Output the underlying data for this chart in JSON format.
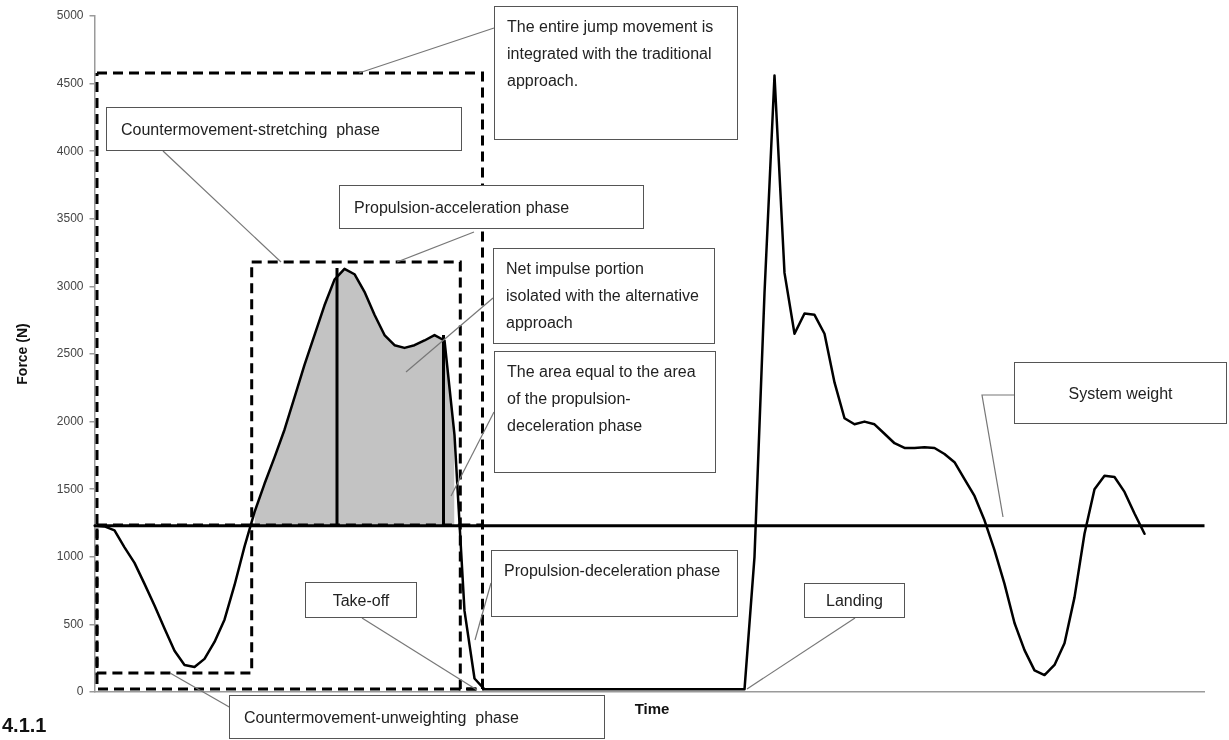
{
  "chart_data": {
    "type": "line",
    "xlabel": "Time",
    "ylabel": "Force (N)",
    "categories": [
      null,
      null,
      null,
      null,
      null,
      null,
      null,
      null,
      null,
      null,
      null,
      null,
      null,
      null,
      null,
      null,
      null,
      null,
      null,
      null,
      null,
      null,
      null,
      null,
      null,
      null,
      null,
      null,
      null,
      null,
      null,
      null,
      null,
      null,
      null,
      null,
      null,
      null,
      null,
      null,
      null,
      null,
      null,
      null,
      null,
      null,
      null,
      null,
      null,
      null,
      null,
      null,
      null,
      null,
      null,
      null,
      null,
      null,
      null,
      null,
      null,
      null,
      null,
      null,
      null,
      null,
      null,
      null,
      null,
      null,
      null,
      null,
      null,
      null,
      null,
      null,
      null,
      null,
      null,
      null,
      null,
      null,
      null,
      null,
      null,
      null,
      null,
      null,
      null,
      null,
      null,
      null,
      null,
      null,
      null,
      null,
      null,
      null,
      null,
      null,
      null,
      null,
      null,
      null,
      null,
      null,
      null,
      null,
      null,
      null,
      null,
      null
    ],
    "series": [
      {
        "color": "#000000",
        "values": [
          1230,
          1225,
          1195,
          1070,
          955,
          800,
          640,
          470,
          305,
          200,
          185,
          245,
          370,
          535,
          790,
          1075,
          1330,
          1540,
          1735,
          1940,
          2180,
          2420,
          2640,
          2860,
          3050,
          3130,
          3090,
          2960,
          2790,
          2640,
          2565,
          2545,
          2565,
          2600,
          2640,
          2600,
          1900,
          600,
          100,
          20,
          20,
          20,
          20,
          20,
          20,
          20,
          20,
          20,
          20,
          20,
          20,
          20,
          20,
          20,
          20,
          20,
          20,
          20,
          20,
          20,
          20,
          20,
          20,
          20,
          20,
          20,
          1000,
          2950,
          4560,
          3100,
          2650,
          2800,
          2790,
          2650,
          2290,
          2025,
          1980,
          2000,
          1980,
          1910,
          1840,
          1805,
          1805,
          1810,
          1805,
          1760,
          1700,
          1575,
          1450,
          1270,
          1050,
          800,
          510,
          310,
          160,
          125,
          200,
          360,
          700,
          1170,
          1500,
          1600,
          1590,
          1480,
          1320,
          1170,
          null,
          null,
          null,
          null,
          null,
          null
        ],
        "lower": [
          null,
          null,
          null,
          null,
          null,
          null,
          null,
          null,
          null,
          null,
          null,
          null,
          null,
          null,
          null,
          null,
          1230,
          1230,
          1230,
          1230,
          1230,
          1230,
          1230,
          1230,
          1230,
          1230,
          1230,
          1230,
          1230,
          1230,
          1230,
          1230,
          1230,
          1230,
          1230,
          1230,
          1230,
          null,
          null,
          null,
          null,
          null,
          null,
          null,
          null,
          null,
          null,
          null,
          null,
          null,
          null,
          null,
          null,
          null,
          null,
          null,
          null,
          null,
          null,
          null,
          null,
          null,
          null,
          null,
          null,
          null,
          null,
          null,
          null,
          null,
          null,
          null,
          null,
          null,
          null,
          null,
          null,
          null,
          null,
          null,
          null,
          null,
          null,
          null,
          null,
          null,
          null,
          null,
          null,
          null,
          null,
          null,
          null,
          null,
          null,
          null,
          null,
          null,
          null,
          null,
          null,
          null,
          null,
          null,
          null,
          null,
          null,
          null,
          null,
          null,
          null,
          null
        ],
        "upper": [
          null,
          null,
          null,
          null,
          null,
          null,
          null,
          null,
          null,
          null,
          null,
          null,
          null,
          null,
          null,
          null,
          1330,
          1540,
          1735,
          1940,
          2180,
          2420,
          2640,
          2860,
          3050,
          3130,
          3090,
          2960,
          2790,
          2640,
          2565,
          2545,
          2565,
          2600,
          2640,
          2600,
          1900,
          null,
          null,
          null,
          null,
          null,
          null,
          null,
          null,
          null,
          null,
          null,
          null,
          null,
          null,
          null,
          null,
          null,
          null,
          null,
          null,
          null,
          null,
          null,
          null,
          null,
          null,
          null,
          null,
          null,
          null,
          null,
          null,
          null,
          null,
          null,
          null,
          null,
          null,
          null,
          null,
          null,
          null,
          null,
          null,
          null,
          null,
          null,
          null,
          null,
          null,
          null,
          null,
          null,
          null,
          null,
          null,
          null,
          null,
          null,
          null,
          null,
          null,
          null,
          null,
          null,
          null,
          null,
          null,
          null,
          null,
          null,
          null,
          null,
          null,
          null
        ]
      }
    ],
    "ylim": [
      0,
      5000
    ],
    "yticks": [
      0,
      500,
      1000,
      1500,
      2000,
      2500,
      3000,
      3500,
      4000,
      4500,
      5000
    ],
    "ref_lines": [
      {
        "axis": "y",
        "value": 1230,
        "label": "System weight",
        "color": "#000000"
      }
    ],
    "annotations": [
      "The entire jump movement is integrated with the traditional approach.",
      "Countermovement-stretching  phase",
      "Propulsion-acceleration phase",
      "Net impulse portion isolated with the alternative approach",
      "The area equal to the area of the propulsion-deceleration phase",
      "Propulsion-deceleration phase",
      "Take-off",
      "Landing",
      "Countermovement-unweighting  phase",
      "4.1.1"
    ],
    "grid": false,
    "legend": false,
    "marker": "none",
    "line_style": "solid"
  }
}
